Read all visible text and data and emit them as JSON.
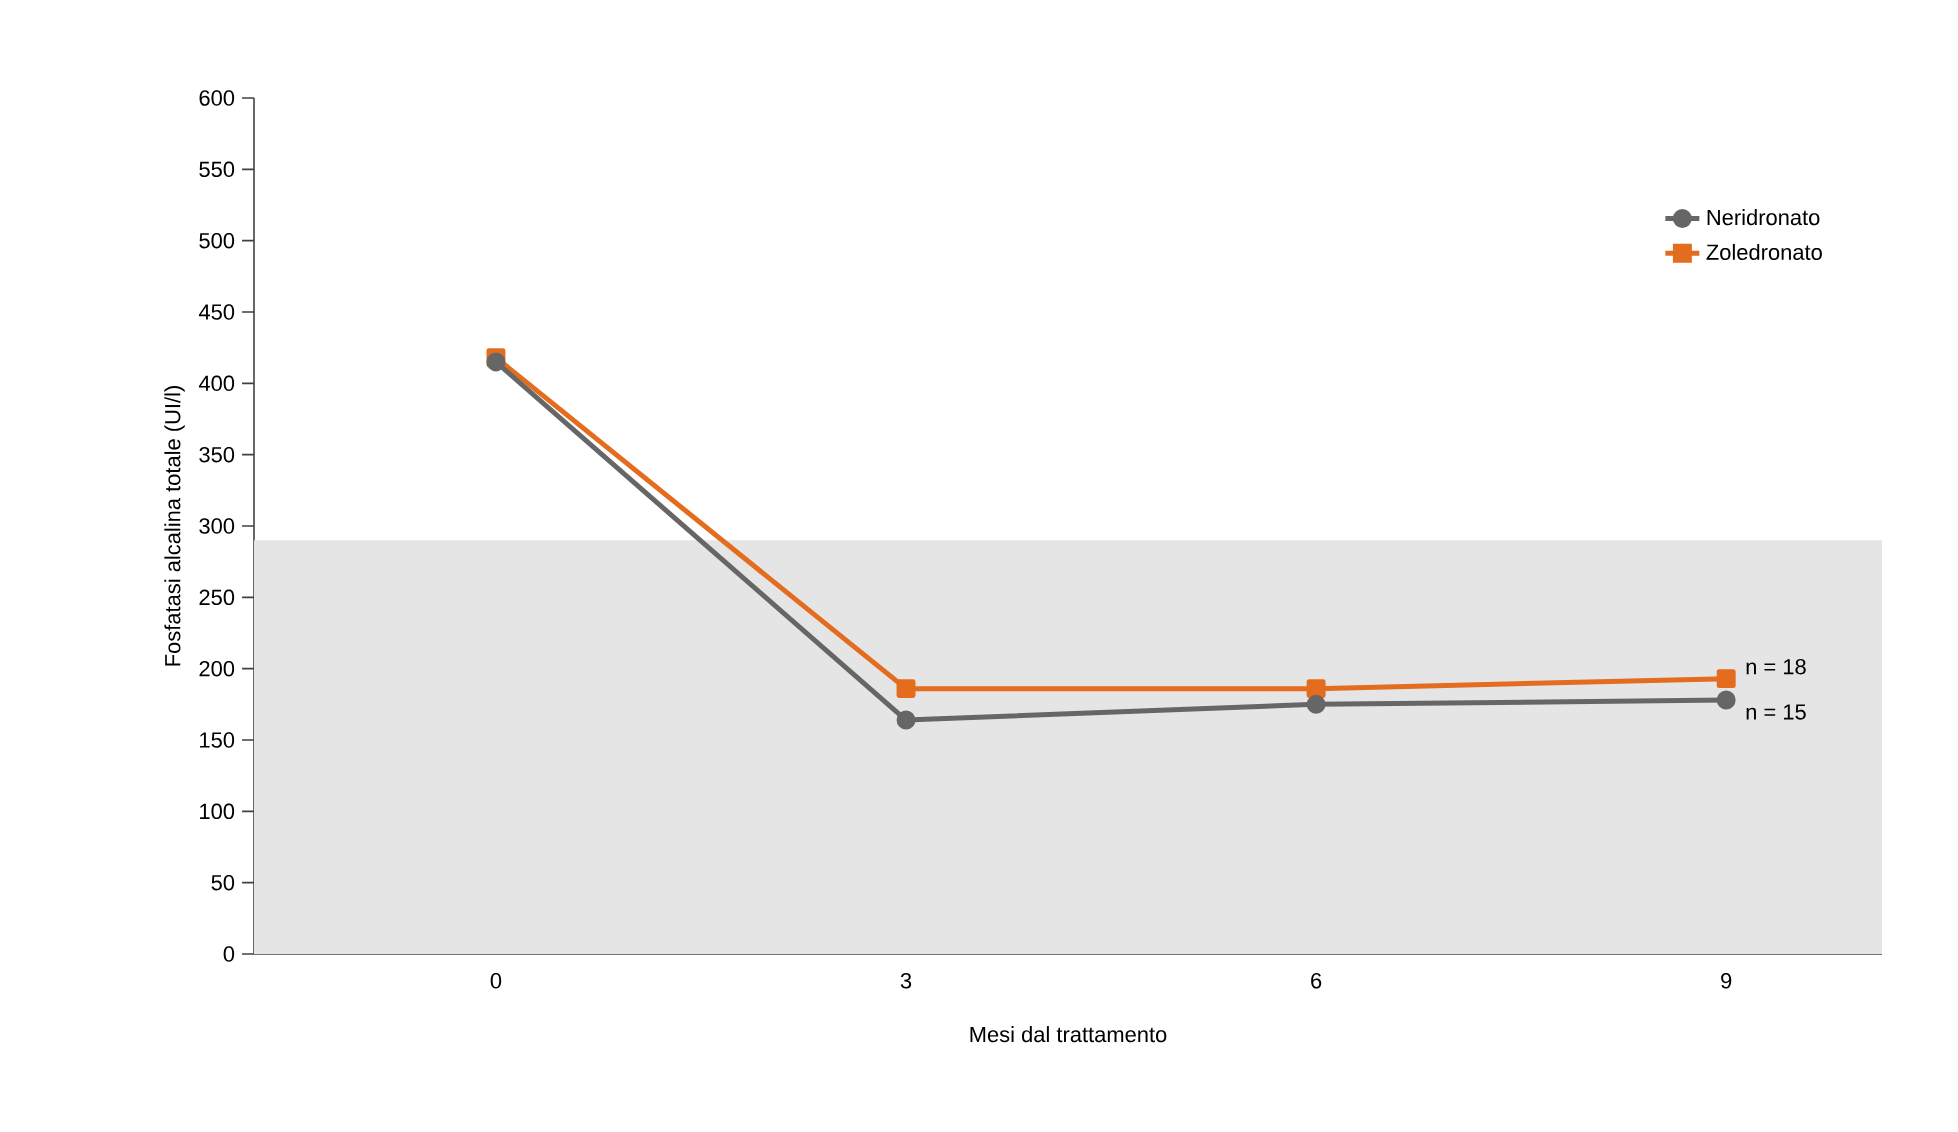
{
  "chart_data": {
    "type": "line",
    "xlabel": "Mesi dal trattamento",
    "ylabel": "Fosfatasi alcalina totale (UI/l)",
    "categories": [
      "0",
      "3",
      "6",
      "9"
    ],
    "series": [
      {
        "name": "Neridronato",
        "color": "#666666",
        "marker": "circle",
        "values": [
          415,
          164,
          175,
          178
        ]
      },
      {
        "name": "Zoledronato",
        "color": "#e36c1e",
        "marker": "square",
        "values": [
          418,
          186,
          186,
          193
        ]
      }
    ],
    "ylim": [
      0,
      600
    ],
    "yticks": [
      0,
      50,
      100,
      150,
      200,
      250,
      300,
      350,
      400,
      450,
      500,
      550,
      600
    ],
    "bands": [
      {
        "axis": "y",
        "from": 0,
        "to": 290,
        "color": "#e5e5e5"
      }
    ],
    "annotations": [
      {
        "text": "n = 18",
        "x": "9",
        "y": 193
      },
      {
        "text": "n = 15",
        "x": "9",
        "y": 178
      }
    ],
    "legend": "top right",
    "grid": false,
    "line_style": "solid"
  }
}
